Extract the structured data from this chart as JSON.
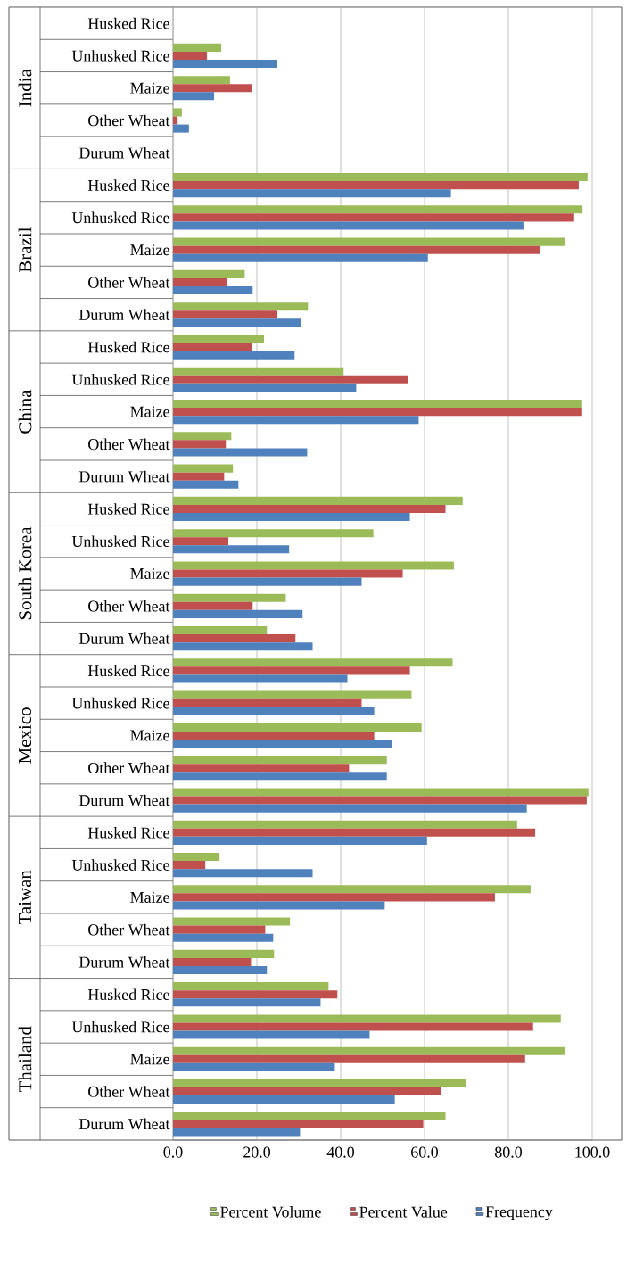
{
  "chart_data": {
    "type": "bar",
    "orientation": "horizontal",
    "categories": [
      "Husked Rice",
      "Unhusked Rice",
      "Maize",
      "Other Wheat",
      "Durum Wheat",
      "Husked Rice",
      "Unhusked Rice",
      "Maize",
      "Other Wheat",
      "Durum Wheat",
      "Husked Rice",
      "Unhusked Rice",
      "Maize",
      "Other Wheat",
      "Durum Wheat",
      "Husked Rice",
      "Unhusked Rice",
      "Maize",
      "Other Wheat",
      "Durum Wheat",
      "Husked Rice",
      "Unhusked Rice",
      "Maize",
      "Other Wheat",
      "Durum Wheat",
      "Husked Rice",
      "Unhusked Rice",
      "Maize",
      "Other Wheat",
      "Durum Wheat",
      "Husked Rice",
      "Unhusked Rice",
      "Maize",
      "Other Wheat",
      "Durum Wheat"
    ],
    "annotations": [
      "India",
      "Brazil",
      "China",
      "South Korea",
      "Mexico",
      "Taiwan",
      "Thailand"
    ],
    "series": [
      {
        "name": "Percent Volume",
        "color": "#9bbb59",
        "values": [
          null,
          11.5,
          13.6,
          2.1,
          null,
          98.9,
          97.7,
          93.6,
          17.1,
          32.2,
          21.7,
          40.7,
          97.4,
          13.9,
          14.3,
          69.1,
          47.8,
          67.0,
          26.9,
          22.4,
          66.7,
          56.9,
          59.3,
          51.0,
          99.1,
          82.1,
          11.1,
          85.3,
          27.9,
          24.1,
          37.1,
          92.5,
          93.4,
          69.9,
          65.0
        ]
      },
      {
        "name": "Percent Value",
        "color": "#c0504d",
        "values": [
          null,
          8.1,
          18.8,
          1.1,
          null,
          96.8,
          95.7,
          87.6,
          12.8,
          24.9,
          18.8,
          56.1,
          97.4,
          12.6,
          12.2,
          65.0,
          13.2,
          54.8,
          19.0,
          29.2,
          56.5,
          45.0,
          48.0,
          42.0,
          98.7,
          86.4,
          7.7,
          76.8,
          22.0,
          18.6,
          39.2,
          85.9,
          84.0,
          64.0,
          59.7
        ]
      },
      {
        "name": "Frequency",
        "color": "#4f81bd",
        "values": [
          null,
          24.9,
          9.8,
          3.8,
          null,
          66.3,
          83.6,
          60.8,
          19.0,
          30.5,
          29.0,
          43.7,
          58.6,
          32.0,
          15.6,
          56.5,
          27.7,
          45.0,
          30.9,
          33.3,
          41.6,
          48.0,
          52.2,
          51.0,
          84.4,
          60.6,
          33.3,
          50.5,
          23.9,
          22.4,
          35.2,
          46.9,
          38.6,
          52.9,
          30.3
        ]
      }
    ],
    "xlim": [
      0,
      100
    ],
    "xticks": [
      {
        "value": 0,
        "label": "0.0"
      },
      {
        "value": 20,
        "label": "20.0"
      },
      {
        "value": 40,
        "label": "40.0"
      },
      {
        "value": 60,
        "label": "60.0"
      },
      {
        "value": 80,
        "label": "80.0"
      },
      {
        "value": 100,
        "label": "100.0"
      }
    ],
    "grid": "x",
    "legend": "bottom"
  }
}
